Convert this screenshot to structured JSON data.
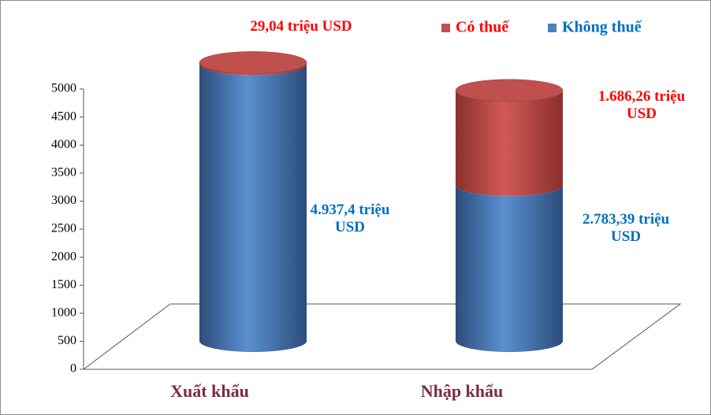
{
  "chart_data": {
    "type": "cylinder-stacked-bar",
    "categories": [
      "Xuất khẩu",
      "Nhập khẩu"
    ],
    "series": [
      {
        "name": "Không thuế",
        "color": "#4f81bd",
        "values": [
          4937.4,
          2783.39
        ],
        "value_labels": [
          "4.937,4 triệu USD",
          "2.783,39 triệu USD"
        ],
        "label_color": "#0070c0"
      },
      {
        "name": "Có thuế",
        "color": "#c0504d",
        "values": [
          29.04,
          1686.26
        ],
        "value_labels": [
          "29,04 triệu USD",
          "1.686,26 triệu USD"
        ],
        "label_color": "#ff0000"
      }
    ],
    "ylim": [
      0,
      5000
    ],
    "yticks": [
      0,
      500,
      1000,
      1500,
      2000,
      2500,
      3000,
      3500,
      4000,
      4500,
      5000
    ],
    "legend": "top-right"
  }
}
